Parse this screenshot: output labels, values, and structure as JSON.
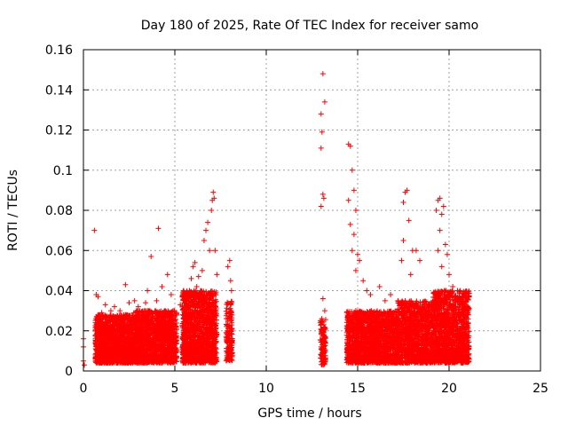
{
  "chart_data": {
    "type": "scatter",
    "title": "Day 180 of 2025, Rate Of TEC Index for receiver samo",
    "xlabel": "GPS time / hours",
    "ylabel": "ROTI / TECUs",
    "xlim": [
      0,
      25
    ],
    "ylim": [
      0,
      0.16
    ],
    "xticks": [
      0,
      5,
      10,
      15,
      20,
      25
    ],
    "yticks": [
      0,
      0.02,
      0.04,
      0.06,
      0.08,
      0.1,
      0.12,
      0.14,
      0.16
    ],
    "xtick_labels": [
      "0",
      "5",
      "10",
      "15",
      "20",
      "25"
    ],
    "ytick_labels": [
      "0",
      "0.02",
      "0.04",
      "0.06",
      "0.08",
      "0.1",
      "0.12",
      "0.14",
      "0.16"
    ],
    "grid": true,
    "marker": "plus",
    "color": "#ff0000",
    "series": [
      {
        "points": [
          [
            0.0,
            0.005
          ],
          [
            0.0,
            0.012
          ],
          [
            0.0,
            0.016
          ],
          [
            0.05,
            0.003
          ],
          [
            0.6,
            0.07
          ],
          [
            0.7,
            0.038
          ],
          [
            0.8,
            0.037
          ],
          [
            1.0,
            0.029
          ],
          [
            1.2,
            0.033
          ],
          [
            1.5,
            0.03
          ],
          [
            1.7,
            0.032
          ],
          [
            2.0,
            0.03
          ],
          [
            2.3,
            0.043
          ],
          [
            2.5,
            0.034
          ],
          [
            2.8,
            0.035
          ],
          [
            3.0,
            0.032
          ],
          [
            3.4,
            0.034
          ],
          [
            3.5,
            0.04
          ],
          [
            3.7,
            0.057
          ],
          [
            4.0,
            0.035
          ],
          [
            4.1,
            0.071
          ],
          [
            4.3,
            0.042
          ],
          [
            4.6,
            0.048
          ],
          [
            4.8,
            0.038
          ],
          [
            5.3,
            0.033
          ],
          [
            5.6,
            0.035
          ],
          [
            5.8,
            0.04
          ],
          [
            5.9,
            0.046
          ],
          [
            6.0,
            0.052
          ],
          [
            6.1,
            0.054
          ],
          [
            6.2,
            0.042
          ],
          [
            6.3,
            0.047
          ],
          [
            6.5,
            0.05
          ],
          [
            6.6,
            0.065
          ],
          [
            6.7,
            0.07
          ],
          [
            6.8,
            0.074
          ],
          [
            6.9,
            0.06
          ],
          [
            7.0,
            0.08
          ],
          [
            7.05,
            0.085
          ],
          [
            7.1,
            0.089
          ],
          [
            7.15,
            0.086
          ],
          [
            7.2,
            0.06
          ],
          [
            7.3,
            0.048
          ],
          [
            7.9,
            0.052
          ],
          [
            8.0,
            0.055
          ],
          [
            8.05,
            0.045
          ],
          [
            8.1,
            0.04
          ],
          [
            13.1,
            0.148
          ],
          [
            13.0,
            0.128
          ],
          [
            13.2,
            0.134
          ],
          [
            13.05,
            0.119
          ],
          [
            13.0,
            0.111
          ],
          [
            13.1,
            0.088
          ],
          [
            13.15,
            0.086
          ],
          [
            13.0,
            0.082
          ],
          [
            13.1,
            0.036
          ],
          [
            13.2,
            0.03
          ],
          [
            13.05,
            0.02
          ],
          [
            14.5,
            0.113
          ],
          [
            14.6,
            0.112
          ],
          [
            14.7,
            0.1
          ],
          [
            14.8,
            0.09
          ],
          [
            14.5,
            0.085
          ],
          [
            14.9,
            0.08
          ],
          [
            14.6,
            0.073
          ],
          [
            14.8,
            0.068
          ],
          [
            14.7,
            0.06
          ],
          [
            15.0,
            0.058
          ],
          [
            14.9,
            0.05
          ],
          [
            15.1,
            0.055
          ],
          [
            15.3,
            0.045
          ],
          [
            15.5,
            0.04
          ],
          [
            15.7,
            0.038
          ],
          [
            16.2,
            0.042
          ],
          [
            16.5,
            0.035
          ],
          [
            16.8,
            0.038
          ],
          [
            17.2,
            0.035
          ],
          [
            17.4,
            0.055
          ],
          [
            17.5,
            0.065
          ],
          [
            17.6,
            0.089
          ],
          [
            17.7,
            0.09
          ],
          [
            17.5,
            0.084
          ],
          [
            17.8,
            0.075
          ],
          [
            17.9,
            0.048
          ],
          [
            18.0,
            0.06
          ],
          [
            18.2,
            0.06
          ],
          [
            18.4,
            0.055
          ],
          [
            19.3,
            0.08
          ],
          [
            19.4,
            0.085
          ],
          [
            19.5,
            0.086
          ],
          [
            19.6,
            0.078
          ],
          [
            19.7,
            0.082
          ],
          [
            19.5,
            0.07
          ],
          [
            19.8,
            0.063
          ],
          [
            19.9,
            0.058
          ],
          [
            19.4,
            0.06
          ],
          [
            19.6,
            0.052
          ],
          [
            20.0,
            0.048
          ],
          [
            20.2,
            0.042
          ],
          [
            20.5,
            0.036
          ],
          [
            20.8,
            0.033
          ],
          [
            21.0,
            0.03
          ],
          [
            21.05,
            0.028
          ]
        ],
        "dense_segments": [
          {
            "x": [
              0.65,
              2.7
            ],
            "y": [
              0.004,
              0.028
            ],
            "count": 1400
          },
          {
            "x": [
              2.7,
              5.1
            ],
            "y": [
              0.004,
              0.03
            ],
            "count": 1500
          },
          {
            "x": [
              5.4,
              7.3
            ],
            "y": [
              0.004,
              0.04
            ],
            "count": 1300
          },
          {
            "x": [
              7.8,
              8.15
            ],
            "y": [
              0.005,
              0.035
            ],
            "count": 160
          },
          {
            "x": [
              12.95,
              13.25
            ],
            "y": [
              0.003,
              0.026
            ],
            "count": 120
          },
          {
            "x": [
              14.4,
              17.2
            ],
            "y": [
              0.004,
              0.03
            ],
            "count": 1600
          },
          {
            "x": [
              17.2,
              19.1
            ],
            "y": [
              0.004,
              0.035
            ],
            "count": 1100
          },
          {
            "x": [
              19.1,
              21.1
            ],
            "y": [
              0.004,
              0.04
            ],
            "count": 1300
          }
        ]
      }
    ]
  }
}
